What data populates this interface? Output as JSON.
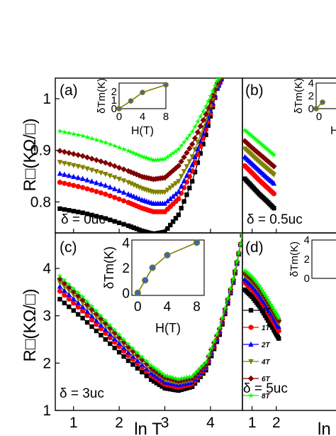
{
  "figure": {
    "shared_xlabel": "ln T",
    "left_ylabel_top": "R□(KΩ/□)",
    "left_ylabel_bottom": "R□(KΩ/□)",
    "inset_ylabel": "δTm(K)",
    "inset_xlabel": "H(T)"
  },
  "colors": {
    "0T": "#000000",
    "1T": "#ff0000",
    "2T": "#0000ff",
    "4T": "#808000",
    "6T": "#800000",
    "8T": "#00ff00",
    "inset_line": "#808000",
    "inset_marker": "#3366cc"
  },
  "legend": [
    "0T",
    "1T",
    "2T",
    "4T",
    "6T",
    "8T"
  ],
  "chart_data": [
    {
      "type": "line",
      "panel": "(a)",
      "annotation": "δ = 0uc",
      "xlim": [
        0.6,
        4.7
      ],
      "ylim": [
        0.74,
        1.04
      ],
      "yticks": [
        0.8,
        0.9,
        1.0
      ],
      "ytick_labels": [
        "0.8",
        "0.9",
        "1"
      ],
      "xticks": [
        1,
        2,
        3,
        4
      ],
      "series": [
        {
          "name": "0T",
          "marker": "square",
          "points": [
            [
              0.7,
              0.787
            ],
            [
              1.2,
              0.779
            ],
            [
              1.7,
              0.768
            ],
            [
              2.2,
              0.754
            ],
            [
              2.5,
              0.744
            ],
            [
              2.75,
              0.738
            ],
            [
              3.0,
              0.742
            ],
            [
              3.3,
              0.775
            ],
            [
              3.6,
              0.84
            ],
            [
              3.9,
              0.93
            ],
            [
              4.15,
              1.02
            ],
            [
              4.3,
              1.05
            ]
          ]
        },
        {
          "name": "1T",
          "marker": "circle",
          "points": [
            [
              0.7,
              0.838
            ],
            [
              1.2,
              0.828
            ],
            [
              1.7,
              0.815
            ],
            [
              2.2,
              0.799
            ],
            [
              2.5,
              0.788
            ],
            [
              2.75,
              0.781
            ],
            [
              3.0,
              0.781
            ],
            [
              3.3,
              0.806
            ],
            [
              3.6,
              0.86
            ],
            [
              3.9,
              0.94
            ],
            [
              4.15,
              1.02
            ],
            [
              4.3,
              1.05
            ]
          ]
        },
        {
          "name": "2T",
          "marker": "triangle-up",
          "points": [
            [
              0.7,
              0.855
            ],
            [
              1.2,
              0.845
            ],
            [
              1.7,
              0.832
            ],
            [
              2.2,
              0.815
            ],
            [
              2.5,
              0.804
            ],
            [
              2.75,
              0.797
            ],
            [
              3.0,
              0.797
            ],
            [
              3.3,
              0.82
            ],
            [
              3.6,
              0.872
            ],
            [
              3.9,
              0.948
            ],
            [
              4.15,
              1.02
            ],
            [
              4.3,
              1.05
            ]
          ]
        },
        {
          "name": "4T",
          "marker": "triangle-down",
          "points": [
            [
              0.7,
              0.877
            ],
            [
              1.2,
              0.867
            ],
            [
              1.7,
              0.854
            ],
            [
              2.2,
              0.838
            ],
            [
              2.5,
              0.826
            ],
            [
              2.75,
              0.819
            ],
            [
              3.0,
              0.819
            ],
            [
              3.3,
              0.84
            ],
            [
              3.6,
              0.888
            ],
            [
              3.9,
              0.958
            ],
            [
              4.15,
              1.025
            ],
            [
              4.3,
              1.05
            ]
          ]
        },
        {
          "name": "6T",
          "marker": "diamond",
          "points": [
            [
              0.7,
              0.899
            ],
            [
              1.2,
              0.889
            ],
            [
              1.7,
              0.876
            ],
            [
              2.2,
              0.86
            ],
            [
              2.5,
              0.849
            ],
            [
              2.75,
              0.844
            ],
            [
              3.0,
              0.847
            ],
            [
              3.3,
              0.87
            ],
            [
              3.6,
              0.912
            ],
            [
              3.9,
              0.97
            ],
            [
              4.15,
              1.03
            ],
            [
              4.3,
              1.05
            ]
          ]
        },
        {
          "name": "8T",
          "marker": "star",
          "points": [
            [
              0.7,
              0.937
            ],
            [
              1.2,
              0.928
            ],
            [
              1.7,
              0.915
            ],
            [
              2.2,
              0.899
            ],
            [
              2.5,
              0.888
            ],
            [
              2.75,
              0.881
            ],
            [
              3.0,
              0.883
            ],
            [
              3.3,
              0.902
            ],
            [
              3.6,
              0.936
            ],
            [
              3.9,
              0.985
            ],
            [
              4.15,
              1.035
            ],
            [
              4.3,
              1.05
            ]
          ]
        }
      ],
      "inset": {
        "xticks": [
          0,
          4,
          8
        ],
        "yticks": [
          0,
          1,
          2
        ],
        "points": [
          [
            0,
            0
          ],
          [
            2,
            0.9
          ],
          [
            4,
            1.9
          ],
          [
            8,
            2.8
          ]
        ]
      }
    },
    {
      "type": "line",
      "panel": "(b)",
      "annotation": "δ = 0.5uc",
      "xlim": [
        0.6,
        4.7
      ],
      "ylim": [
        0.74,
        1.04
      ],
      "xticks": [
        1,
        2
      ],
      "series": [
        {
          "name": "0T",
          "marker": "square",
          "points": [
            [
              0.7,
              0.845
            ],
            [
              1.0,
              0.83
            ],
            [
              1.3,
              0.815
            ],
            [
              1.6,
              0.802
            ],
            [
              1.9,
              0.788
            ]
          ]
        },
        {
          "name": "1T",
          "marker": "circle",
          "points": [
            [
              0.7,
              0.87
            ],
            [
              1.0,
              0.856
            ],
            [
              1.3,
              0.842
            ],
            [
              1.6,
              0.829
            ],
            [
              1.9,
              0.816
            ]
          ]
        },
        {
          "name": "2T",
          "marker": "triangle-up",
          "points": [
            [
              0.7,
              0.887
            ],
            [
              1.0,
              0.874
            ],
            [
              1.3,
              0.861
            ],
            [
              1.6,
              0.848
            ],
            [
              1.9,
              0.836
            ]
          ]
        },
        {
          "name": "4T",
          "marker": "triangle-down",
          "points": [
            [
              0.7,
              0.903
            ],
            [
              1.0,
              0.89
            ],
            [
              1.3,
              0.877
            ],
            [
              1.6,
              0.865
            ],
            [
              1.9,
              0.853
            ]
          ]
        },
        {
          "name": "6T",
          "marker": "diamond",
          "points": [
            [
              0.7,
              0.918
            ],
            [
              1.0,
              0.905
            ],
            [
              1.3,
              0.893
            ],
            [
              1.6,
              0.881
            ],
            [
              1.9,
              0.869
            ]
          ]
        },
        {
          "name": "8T",
          "marker": "star",
          "points": [
            [
              0.7,
              0.939
            ],
            [
              1.0,
              0.927
            ],
            [
              1.3,
              0.915
            ],
            [
              1.6,
              0.903
            ],
            [
              1.9,
              0.891
            ]
          ]
        }
      ],
      "inset": {
        "yticks": [
          0,
          2,
          4
        ],
        "xtick_visible": "0",
        "xlabel_visible": "H",
        "points": [
          [
            0,
            0
          ],
          [
            2,
            1
          ]
        ]
      }
    },
    {
      "type": "line",
      "panel": "(c)",
      "annotation": "δ = 3uc",
      "xlim": [
        0.6,
        4.7
      ],
      "ylim": [
        1.0,
        4.75
      ],
      "yticks": [
        1,
        2,
        3,
        4
      ],
      "xticks": [
        1,
        2,
        3,
        4
      ],
      "xtick_labels": [
        "1",
        "2",
        "3",
        "4"
      ],
      "series": [
        {
          "name": "0T",
          "marker": "square",
          "points": [
            [
              0.7,
              3.35
            ],
            [
              1.2,
              2.95
            ],
            [
              1.7,
              2.5
            ],
            [
              2.2,
              2.05
            ],
            [
              2.7,
              1.65
            ],
            [
              3.0,
              1.47
            ],
            [
              3.3,
              1.42
            ],
            [
              3.6,
              1.5
            ],
            [
              3.9,
              1.85
            ],
            [
              4.2,
              2.6
            ],
            [
              4.5,
              3.7
            ],
            [
              4.7,
              4.7
            ]
          ]
        },
        {
          "name": "1T",
          "marker": "circle",
          "points": [
            [
              0.7,
              3.52
            ],
            [
              1.2,
              3.1
            ],
            [
              1.7,
              2.63
            ],
            [
              2.2,
              2.16
            ],
            [
              2.7,
              1.74
            ],
            [
              3.0,
              1.55
            ],
            [
              3.3,
              1.49
            ],
            [
              3.6,
              1.56
            ],
            [
              3.9,
              1.9
            ],
            [
              4.2,
              2.65
            ],
            [
              4.5,
              3.72
            ],
            [
              4.7,
              4.7
            ]
          ]
        },
        {
          "name": "2T",
          "marker": "triangle-up",
          "points": [
            [
              0.7,
              3.62
            ],
            [
              1.2,
              3.19
            ],
            [
              1.7,
              2.71
            ],
            [
              2.2,
              2.23
            ],
            [
              2.7,
              1.8
            ],
            [
              3.0,
              1.6
            ],
            [
              3.3,
              1.54
            ],
            [
              3.6,
              1.6
            ],
            [
              3.9,
              1.93
            ],
            [
              4.2,
              2.67
            ],
            [
              4.5,
              3.74
            ],
            [
              4.7,
              4.7
            ]
          ]
        },
        {
          "name": "4T",
          "marker": "triangle-down",
          "points": [
            [
              0.7,
              3.7
            ],
            [
              1.2,
              3.27
            ],
            [
              1.7,
              2.78
            ],
            [
              2.2,
              2.29
            ],
            [
              2.7,
              1.85
            ],
            [
              3.0,
              1.65
            ],
            [
              3.3,
              1.58
            ],
            [
              3.6,
              1.64
            ],
            [
              3.9,
              1.96
            ],
            [
              4.2,
              2.7
            ],
            [
              4.5,
              3.75
            ],
            [
              4.7,
              4.7
            ]
          ]
        },
        {
          "name": "6T",
          "marker": "diamond",
          "points": [
            [
              0.7,
              3.78
            ],
            [
              1.2,
              3.34
            ],
            [
              1.7,
              2.85
            ],
            [
              2.2,
              2.35
            ],
            [
              2.7,
              1.9
            ],
            [
              3.0,
              1.7
            ],
            [
              3.3,
              1.62
            ],
            [
              3.6,
              1.68
            ],
            [
              3.9,
              1.99
            ],
            [
              4.2,
              2.72
            ],
            [
              4.5,
              3.76
            ],
            [
              4.7,
              4.7
            ]
          ]
        },
        {
          "name": "8T",
          "marker": "star",
          "points": [
            [
              0.7,
              3.84
            ],
            [
              1.2,
              3.4
            ],
            [
              1.7,
              2.9
            ],
            [
              2.2,
              2.4
            ],
            [
              2.7,
              1.95
            ],
            [
              3.0,
              1.74
            ],
            [
              3.3,
              1.66
            ],
            [
              3.6,
              1.72
            ],
            [
              3.9,
              2.02
            ],
            [
              4.2,
              2.75
            ],
            [
              4.5,
              3.78
            ],
            [
              4.7,
              4.7
            ]
          ]
        }
      ],
      "inset": {
        "xticks": [
          0,
          4,
          8
        ],
        "yticks": [
          0,
          2,
          4
        ],
        "points": [
          [
            0,
            0
          ],
          [
            1,
            1
          ],
          [
            2,
            2
          ],
          [
            4,
            3
          ],
          [
            8,
            4
          ]
        ]
      }
    },
    {
      "type": "line",
      "panel": "(d)",
      "annotation": "δ = 5uc",
      "xlim": [
        0.6,
        4.7
      ],
      "ylim": [
        1.0,
        4.75
      ],
      "xticks": [
        1,
        2
      ],
      "series": [
        {
          "name": "0T",
          "marker": "square",
          "points": [
            [
              0.7,
              3.55
            ],
            [
              1.0,
              3.4
            ],
            [
              1.3,
              3.2
            ],
            [
              1.6,
              2.95
            ],
            [
              1.9,
              2.7
            ],
            [
              2.1,
              2.52
            ]
          ]
        },
        {
          "name": "1T",
          "marker": "circle",
          "points": [
            [
              0.7,
              3.7
            ],
            [
              1.0,
              3.56
            ],
            [
              1.3,
              3.37
            ],
            [
              1.6,
              3.12
            ],
            [
              1.9,
              2.86
            ],
            [
              2.1,
              2.68
            ]
          ]
        },
        {
          "name": "2T",
          "marker": "triangle-up",
          "points": [
            [
              0.7,
              3.78
            ],
            [
              1.0,
              3.64
            ],
            [
              1.3,
              3.45
            ],
            [
              1.6,
              3.2
            ],
            [
              1.9,
              2.95
            ],
            [
              2.1,
              2.77
            ]
          ]
        },
        {
          "name": "4T",
          "marker": "triangle-down",
          "points": [
            [
              0.7,
              3.85
            ],
            [
              1.0,
              3.71
            ],
            [
              1.3,
              3.52
            ],
            [
              1.6,
              3.28
            ],
            [
              1.9,
              3.02
            ],
            [
              2.1,
              2.84
            ]
          ]
        },
        {
          "name": "6T",
          "marker": "diamond",
          "points": [
            [
              0.7,
              3.9
            ],
            [
              1.0,
              3.77
            ],
            [
              1.3,
              3.58
            ],
            [
              1.6,
              3.34
            ],
            [
              1.9,
              3.08
            ],
            [
              2.1,
              2.9
            ]
          ]
        },
        {
          "name": "8T",
          "marker": "star",
          "points": [
            [
              0.7,
              3.95
            ],
            [
              1.0,
              3.82
            ],
            [
              1.3,
              3.63
            ],
            [
              1.6,
              3.39
            ],
            [
              1.9,
              3.13
            ],
            [
              2.1,
              2.95
            ]
          ]
        }
      ],
      "inset": {
        "yticks": [
          0,
          2,
          4
        ]
      }
    }
  ]
}
